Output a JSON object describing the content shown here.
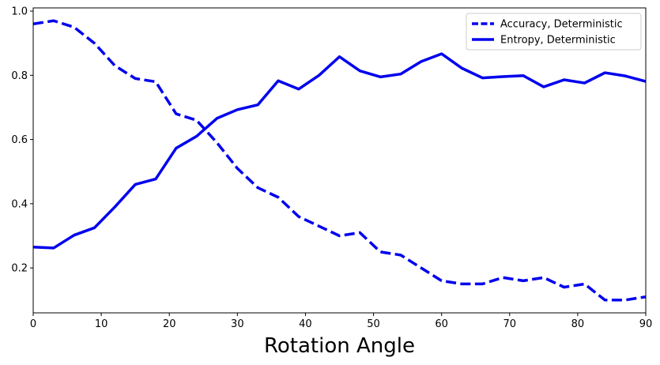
{
  "chart_data": {
    "type": "line",
    "title": "",
    "xlabel": "Rotation Angle",
    "ylabel": "",
    "xlim": [
      0,
      90
    ],
    "ylim": [
      0.06,
      1.01
    ],
    "x_ticks": [
      0,
      10,
      20,
      30,
      40,
      50,
      60,
      70,
      80,
      90
    ],
    "y_ticks": [
      0.2,
      0.4,
      0.6,
      0.8,
      1.0
    ],
    "y_tick_labels": [
      "0.2",
      "0.4",
      "0.6",
      "0.8",
      "1.0"
    ],
    "grid": false,
    "legend_position": "top-right",
    "x": [
      0,
      3,
      6,
      9,
      12,
      15,
      18,
      21,
      24,
      27,
      30,
      33,
      36,
      39,
      42,
      45,
      48,
      51,
      54,
      57,
      60,
      63,
      66,
      69,
      72,
      75,
      78,
      81,
      84,
      87,
      90
    ],
    "series": [
      {
        "name": "Accuracy, Deterministic",
        "style": "dashed",
        "color": "#0000ee",
        "values": [
          0.96,
          0.97,
          0.95,
          0.9,
          0.83,
          0.79,
          0.78,
          0.68,
          0.66,
          0.59,
          0.51,
          0.45,
          0.42,
          0.36,
          0.33,
          0.3,
          0.31,
          0.25,
          0.24,
          0.2,
          0.16,
          0.15,
          0.15,
          0.17,
          0.16,
          0.17,
          0.14,
          0.15,
          0.1,
          0.1,
          0.11
        ]
      },
      {
        "name": "Entropy, Deterministic",
        "style": "solid",
        "color": "#0000ee",
        "values": [
          0.265,
          0.262,
          0.302,
          0.325,
          0.39,
          0.46,
          0.477,
          0.573,
          0.61,
          0.666,
          0.693,
          0.708,
          0.783,
          0.757,
          0.8,
          0.858,
          0.814,
          0.795,
          0.804,
          0.843,
          0.867,
          0.822,
          0.792,
          0.796,
          0.799,
          0.764,
          0.786,
          0.776,
          0.808,
          0.798,
          0.781
        ]
      }
    ]
  }
}
